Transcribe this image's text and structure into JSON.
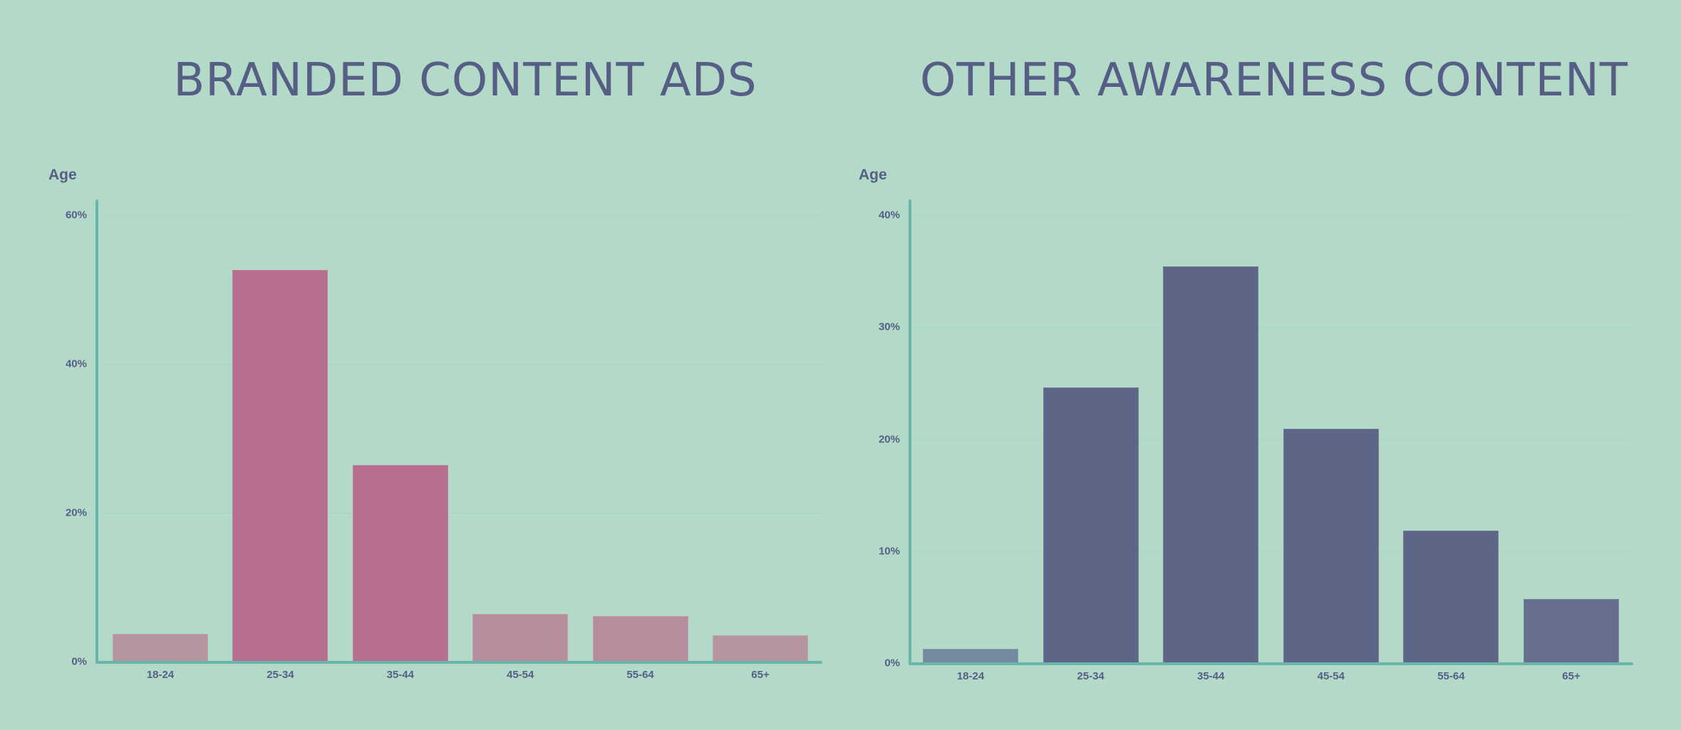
{
  "page": {
    "background": "#b3d9c9",
    "title_color": "#565e86",
    "axis_color": "#6ab5ab"
  },
  "chart_data": [
    {
      "type": "bar",
      "title": "BRANDED CONTENT ADS",
      "xlabel": "",
      "ylabel": "Age",
      "categories": [
        "18-24",
        "25-34",
        "35-44",
        "45-54",
        "55-64",
        "65+"
      ],
      "values": [
        3.7,
        52.6,
        26.4,
        6.4,
        6.1,
        3.5
      ],
      "unit": "%",
      "ylim": [
        0,
        60
      ],
      "yticks": [
        "0%",
        "20%",
        "40%",
        "60%"
      ],
      "ytick_values": [
        0,
        20,
        40,
        60
      ],
      "grid": true,
      "legend": null,
      "bar_colors": [
        "#b5959f",
        "#b56e8e",
        "#b56e8e",
        "#b58d9c",
        "#b58d9c",
        "#b5959f"
      ]
    },
    {
      "type": "bar",
      "title": "OTHER AWARENESS CONTENT",
      "xlabel": "",
      "ylabel": "Age",
      "categories": [
        "18-24",
        "25-34",
        "35-44",
        "45-54",
        "55-64",
        "65+"
      ],
      "values": [
        1.3,
        24.6,
        35.4,
        20.9,
        11.8,
        5.7
      ],
      "unit": "%",
      "ylim": [
        0,
        40
      ],
      "yticks": [
        "0%",
        "10%",
        "20%",
        "30%",
        "40%"
      ],
      "ytick_values": [
        0,
        10,
        20,
        30,
        40
      ],
      "grid": true,
      "legend": null,
      "bar_colors": [
        "#768a9f",
        "#5d6687",
        "#5d6687",
        "#5d6687",
        "#5d6687",
        "#66708e"
      ]
    }
  ]
}
